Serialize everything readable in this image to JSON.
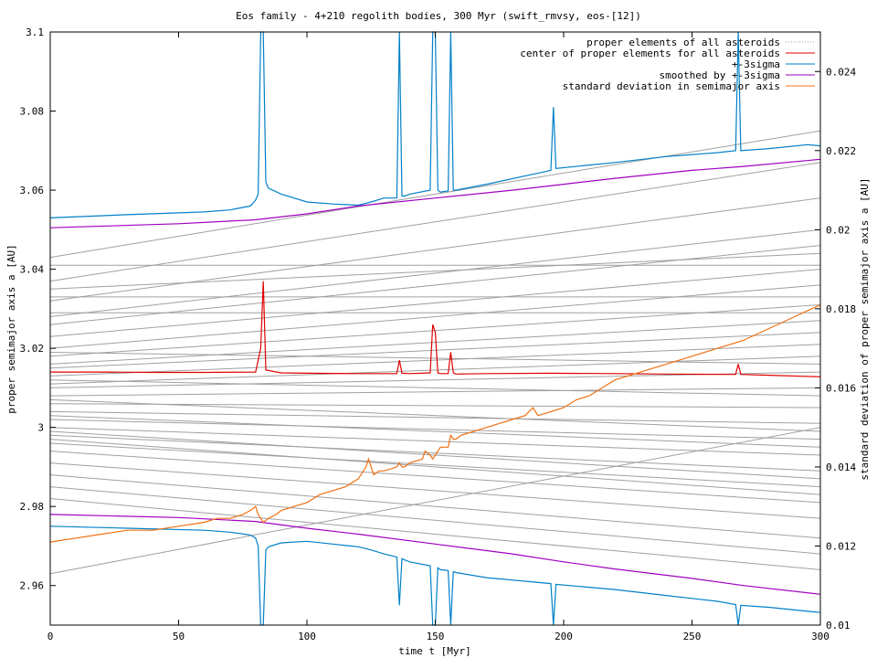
{
  "chart_data": {
    "type": "line",
    "title": "Eos family - 4+210 regolith bodies, 300 Myr (swift_rmvsy, eos-[12])",
    "xlabel": "time t [Myr]",
    "ylabel": "proper semimajor axis a [AU]",
    "y2label": "standard deviation of proper semimajor axis a [AU]",
    "xlim": [
      0,
      300
    ],
    "ylim": [
      2.95,
      3.1
    ],
    "y2lim": [
      0.01,
      0.025
    ],
    "xticks": [
      "0",
      "50",
      "100",
      "150",
      "200",
      "250",
      "300"
    ],
    "yticks": [
      "2.96",
      "2.98",
      "3",
      "3.02",
      "3.04",
      "3.06",
      "3.08",
      "3.1"
    ],
    "y2ticks": [
      "0.01",
      "0.012",
      "0.014",
      "0.016",
      "0.018",
      "0.02",
      "0.022",
      "0.024"
    ],
    "grid": false,
    "legend_position": "top-right",
    "colors": {
      "proper": "#a0a0a0",
      "center": "#e00000",
      "plus3sigma": "#0080c8",
      "smoothed": "#a000c0",
      "stddev": "#f07010"
    },
    "series": [
      {
        "name": "proper elements of all asteroids",
        "axis": "y",
        "style": "many-lines",
        "note_lines": [
          {
            "x": [
              0,
              300
            ],
            "y": [
              3.043,
              3.075
            ]
          },
          {
            "x": [
              0,
              300
            ],
            "y": [
              3.037,
              3.067
            ]
          },
          {
            "x": [
              0,
              300
            ],
            "y": [
              3.032,
              3.058
            ]
          },
          {
            "x": [
              0,
              300
            ],
            "y": [
              3.028,
              3.05
            ]
          },
          {
            "x": [
              0,
              300
            ],
            "y": [
              3.026,
              3.046
            ]
          },
          {
            "x": [
              0,
              300
            ],
            "y": [
              3.023,
              3.04
            ]
          },
          {
            "x": [
              0,
              300
            ],
            "y": [
              3.02,
              3.036
            ]
          },
          {
            "x": [
              0,
              300
            ],
            "y": [
              3.018,
              3.031
            ]
          },
          {
            "x": [
              0,
              300
            ],
            "y": [
              3.016,
              3.027
            ]
          },
          {
            "x": [
              0,
              300
            ],
            "y": [
              3.015,
              3.024
            ]
          },
          {
            "x": [
              0,
              300
            ],
            "y": [
              3.013,
              3.021
            ]
          },
          {
            "x": [
              0,
              300
            ],
            "y": [
              3.011,
              3.018
            ]
          },
          {
            "x": [
              0,
              300
            ],
            "y": [
              3.01,
              3.014
            ]
          },
          {
            "x": [
              0,
              300
            ],
            "y": [
              3.008,
              3.01
            ]
          },
          {
            "x": [
              0,
              300
            ],
            "y": [
              3.006,
              3.005
            ]
          },
          {
            "x": [
              0,
              300
            ],
            "y": [
              3.004,
              3.001
            ]
          },
          {
            "x": [
              0,
              300
            ],
            "y": [
              3.002,
              2.997
            ]
          },
          {
            "x": [
              0,
              300
            ],
            "y": [
              3.0,
              2.993
            ]
          },
          {
            "x": [
              0,
              300
            ],
            "y": [
              2.998,
              2.989
            ]
          },
          {
            "x": [
              0,
              300
            ],
            "y": [
              2.996,
              2.985
            ]
          },
          {
            "x": [
              0,
              300
            ],
            "y": [
              2.994,
              2.981
            ]
          },
          {
            "x": [
              0,
              300
            ],
            "y": [
              2.991,
              2.977
            ]
          },
          {
            "x": [
              0,
              300
            ],
            "y": [
              2.988,
              2.972
            ]
          },
          {
            "x": [
              0,
              300
            ],
            "y": [
              2.985,
              2.968
            ]
          },
          {
            "x": [
              0,
              300
            ],
            "y": [
              2.982,
              2.964
            ]
          },
          {
            "x": [
              0,
              300
            ],
            "y": [
              2.963,
              3.0
            ]
          },
          {
            "x": [
              0,
              300
            ],
            "y": [
              3.041,
              3.041
            ]
          },
          {
            "x": [
              0,
              300
            ],
            "y": [
              3.033,
              3.033
            ]
          },
          {
            "x": [
              0,
              300
            ],
            "y": [
              3.029,
              3.029
            ]
          },
          {
            "x": [
              0,
              300
            ],
            "y": [
              3.035,
              3.044
            ]
          },
          {
            "x": [
              0,
              300
            ],
            "y": [
              3.019,
              3.016
            ]
          },
          {
            "x": [
              0,
              300
            ],
            "y": [
              3.012,
              3.008
            ]
          },
          {
            "x": [
              0,
              300
            ],
            "y": [
              3.007,
              2.999
            ]
          },
          {
            "x": [
              0,
              300
            ],
            "y": [
              3.003,
              2.995
            ]
          },
          {
            "x": [
              0,
              300
            ],
            "y": [
              2.999,
              2.987
            ]
          },
          {
            "x": [
              0,
              300
            ],
            "y": [
              2.997,
              2.983
            ]
          }
        ]
      },
      {
        "name": "center of proper elements for all asteroids",
        "axis": "y",
        "x": [
          0,
          20,
          40,
          60,
          80,
          82,
          83,
          84,
          90,
          100,
          120,
          135,
          136,
          137,
          140,
          148,
          149,
          150,
          151,
          152,
          155,
          156,
          157,
          158,
          170,
          195,
          220,
          240,
          267,
          268,
          269,
          280,
          300
        ],
        "y": [
          3.014,
          3.014,
          3.0139,
          3.0139,
          3.014,
          3.02,
          3.037,
          3.0145,
          3.0138,
          3.0137,
          3.0136,
          3.0136,
          3.017,
          3.0137,
          3.0136,
          3.0138,
          3.026,
          3.024,
          3.0138,
          3.0136,
          3.0136,
          3.019,
          3.0138,
          3.0135,
          3.0136,
          3.0137,
          3.0136,
          3.0135,
          3.0134,
          3.016,
          3.0134,
          3.0132,
          3.0128
        ]
      },
      {
        "name": "+-3sigma",
        "axis": "y",
        "upper": {
          "x": [
            0,
            30,
            60,
            70,
            78,
            80,
            81,
            82,
            83,
            84,
            85,
            90,
            100,
            110,
            120,
            125,
            130,
            135,
            136,
            137,
            138,
            140,
            148,
            149,
            150,
            151,
            152,
            155,
            156,
            157,
            158,
            170,
            195,
            196,
            197,
            220,
            240,
            260,
            267,
            268,
            269,
            280,
            295,
            300
          ],
          "y": [
            3.053,
            3.0538,
            3.0545,
            3.055,
            3.056,
            3.0575,
            3.059,
            3.1,
            3.1,
            3.062,
            3.0605,
            3.059,
            3.057,
            3.0565,
            3.0562,
            3.057,
            3.058,
            3.058,
            3.1,
            3.0585,
            3.0585,
            3.059,
            3.06,
            3.1,
            3.1,
            3.06,
            3.0595,
            3.0598,
            3.1,
            3.06,
            3.06,
            3.0615,
            3.065,
            3.081,
            3.0655,
            3.067,
            3.0685,
            3.0695,
            3.07,
            3.1,
            3.07,
            3.0705,
            3.0715,
            3.0712
          ]
        },
        "lower": {
          "x": [
            0,
            30,
            60,
            70,
            78,
            80,
            81,
            82,
            83,
            84,
            85,
            90,
            100,
            110,
            120,
            125,
            130,
            135,
            136,
            137,
            138,
            140,
            148,
            149,
            150,
            151,
            152,
            155,
            156,
            157,
            158,
            170,
            195,
            196,
            197,
            220,
            240,
            260,
            267,
            268,
            269,
            280,
            295,
            300
          ],
          "y": [
            2.975,
            2.9745,
            2.974,
            2.9735,
            2.9728,
            2.972,
            2.97,
            2.95,
            2.95,
            2.969,
            2.9698,
            2.9708,
            2.9712,
            2.9705,
            2.9698,
            2.969,
            2.968,
            2.9672,
            2.955,
            2.9668,
            2.9665,
            2.966,
            2.965,
            2.95,
            2.95,
            2.9645,
            2.964,
            2.9638,
            2.95,
            2.9635,
            2.9633,
            2.962,
            2.9605,
            2.95,
            2.9603,
            2.959,
            2.9575,
            2.956,
            2.9552,
            2.95,
            2.955,
            2.9545,
            2.9535,
            2.9532
          ]
        }
      },
      {
        "name": "smoothed by +-3sigma",
        "axis": "y",
        "upper": {
          "x": [
            0,
            50,
            80,
            100,
            120,
            150,
            180,
            200,
            220,
            250,
            270,
            300
          ],
          "y": [
            3.0505,
            3.0515,
            3.0525,
            3.054,
            3.056,
            3.058,
            3.06,
            3.0615,
            3.063,
            3.065,
            3.066,
            3.0678
          ]
        },
        "lower": {
          "x": [
            0,
            50,
            80,
            100,
            120,
            150,
            180,
            200,
            220,
            250,
            270,
            300
          ],
          "y": [
            2.978,
            2.9772,
            2.9762,
            2.9745,
            2.973,
            2.9705,
            2.968,
            2.966,
            2.9642,
            2.9618,
            2.96,
            2.9578
          ]
        }
      },
      {
        "name": "standard deviation in semimajor axis",
        "axis": "y2",
        "x": [
          0,
          10,
          20,
          30,
          40,
          50,
          60,
          65,
          70,
          75,
          78,
          80,
          81,
          82,
          83,
          85,
          88,
          90,
          95,
          100,
          105,
          110,
          115,
          120,
          123,
          124,
          125,
          126,
          128,
          130,
          135,
          136,
          137,
          138,
          140,
          145,
          146,
          148,
          149,
          150,
          151,
          152,
          155,
          156,
          157,
          158,
          160,
          165,
          170,
          175,
          180,
          185,
          188,
          190,
          195,
          200,
          205,
          210,
          215,
          220,
          230,
          240,
          250,
          260,
          270,
          280,
          290,
          300
        ],
        "y": [
          0.0121,
          0.0122,
          0.0123,
          0.0124,
          0.0124,
          0.0125,
          0.0126,
          0.0127,
          0.0127,
          0.0128,
          0.0129,
          0.013,
          0.0128,
          0.0127,
          0.0126,
          0.0127,
          0.0128,
          0.0129,
          0.013,
          0.0131,
          0.0133,
          0.0134,
          0.0135,
          0.0137,
          0.014,
          0.0142,
          0.014,
          0.0138,
          0.0139,
          0.0139,
          0.014,
          0.0141,
          0.014,
          0.014,
          0.0141,
          0.0142,
          0.0144,
          0.0143,
          0.0142,
          0.0143,
          0.0144,
          0.0145,
          0.0145,
          0.0148,
          0.0147,
          0.0147,
          0.0148,
          0.0149,
          0.015,
          0.0151,
          0.0152,
          0.0153,
          0.0155,
          0.0153,
          0.0154,
          0.0155,
          0.0157,
          0.0158,
          0.016,
          0.0162,
          0.0164,
          0.0166,
          0.0168,
          0.017,
          0.0172,
          0.0175,
          0.0178,
          0.0181
        ]
      }
    ]
  }
}
